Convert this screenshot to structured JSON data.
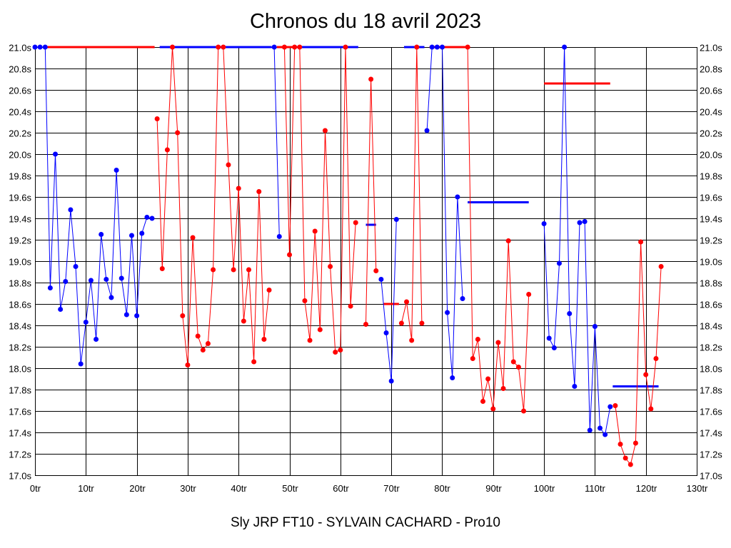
{
  "title": "Chronos du 18 avril 2023",
  "footer": "Sly JRP FT10 - SYLVAIN CACHARD - Pro10",
  "colors": {
    "blue": "#0000ff",
    "red": "#ff0000",
    "grid": "#000000",
    "background": "#ffffff"
  },
  "chart_data": {
    "type": "line",
    "title": "Chronos du 18 avril 2023",
    "xlabel": "",
    "ylabel": "",
    "xlim": [
      0,
      130
    ],
    "ylim": [
      17.0,
      21.0
    ],
    "grid": true,
    "x_ticks": [
      "0tr",
      "10tr",
      "20tr",
      "30tr",
      "40tr",
      "50tr",
      "60tr",
      "70tr",
      "80tr",
      "90tr",
      "100tr",
      "110tr",
      "120tr",
      "130tr"
    ],
    "y_ticks": [
      "17.0s",
      "17.2s",
      "17.4s",
      "17.6s",
      "17.8s",
      "18.0s",
      "18.2s",
      "18.4s",
      "18.6s",
      "18.8s",
      "19.0s",
      "19.2s",
      "19.4s",
      "19.6s",
      "19.8s",
      "20.0s",
      "20.2s",
      "20.4s",
      "20.6s",
      "20.8s",
      "21.0s"
    ],
    "series": [
      {
        "color": "blue",
        "x": [
          0,
          1,
          2,
          3,
          4,
          5,
          6,
          7,
          8,
          9,
          10,
          11,
          12,
          13,
          14,
          15,
          16,
          17,
          18,
          19,
          20,
          21,
          22,
          23
        ],
        "values": [
          21.0,
          21.0,
          21.0,
          18.75,
          20.0,
          18.55,
          18.81,
          19.48,
          18.95,
          18.04,
          18.43,
          18.82,
          18.27,
          19.25,
          18.83,
          18.66,
          19.85,
          18.84,
          18.5,
          19.24,
          18.49,
          19.26,
          19.41,
          19.4
        ]
      },
      {
        "color": "red",
        "x": [
          24,
          25,
          26,
          27,
          28,
          29,
          30,
          31,
          32,
          33,
          34,
          35,
          36,
          37,
          38,
          39,
          40,
          41,
          42,
          43,
          44,
          45,
          46
        ],
        "values": [
          20.33,
          18.93,
          20.04,
          21.0,
          20.2,
          18.49,
          18.03,
          19.22,
          18.3,
          18.17,
          18.23,
          18.92,
          21.0,
          21.0,
          19.9,
          18.92,
          19.68,
          18.44,
          18.92,
          18.06,
          19.65,
          18.27,
          18.73
        ]
      },
      {
        "color": "blue",
        "x": [
          47,
          48
        ],
        "values": [
          21.0,
          19.23
        ]
      },
      {
        "color": "red",
        "x": [
          49,
          50,
          51,
          52,
          53,
          54,
          55,
          56,
          57,
          58,
          59,
          60,
          61,
          62,
          63
        ],
        "values": [
          21.0,
          19.06,
          21.0,
          21.0,
          18.63,
          18.26,
          19.28,
          18.36,
          20.22,
          18.95,
          18.15,
          18.17,
          21.0,
          18.58,
          19.36
        ]
      },
      {
        "color": "red",
        "x": [
          65,
          66,
          67
        ],
        "values": [
          18.41,
          20.7,
          18.91
        ]
      },
      {
        "color": "blue",
        "x": [
          68,
          69,
          70,
          71
        ],
        "values": [
          18.83,
          18.33,
          17.88,
          19.39
        ]
      },
      {
        "color": "red",
        "x": [
          72,
          73,
          74,
          75,
          76
        ],
        "values": [
          18.42,
          18.62,
          18.26,
          21.0,
          18.42
        ]
      },
      {
        "color": "blue",
        "x": [
          77,
          78,
          79,
          80,
          81,
          82,
          83,
          84
        ],
        "values": [
          20.22,
          21.0,
          21.0,
          21.0,
          18.52,
          17.91,
          19.6,
          18.65
        ]
      },
      {
        "color": "red",
        "x": [
          85,
          86,
          87,
          88,
          89,
          90,
          91,
          92,
          93,
          94,
          95,
          96,
          97
        ],
        "values": [
          21.0,
          18.09,
          18.27,
          17.69,
          17.9,
          17.62,
          18.24,
          17.81,
          19.19,
          18.06,
          18.01,
          17.6,
          18.69
        ]
      },
      {
        "color": "blue",
        "x": [
          100,
          101,
          102,
          103,
          104,
          105,
          106,
          107,
          108,
          109,
          110,
          111,
          112,
          113
        ],
        "values": [
          19.35,
          18.28,
          18.19,
          18.98,
          21.0,
          18.51,
          17.83,
          19.36,
          19.37,
          17.42,
          18.39,
          17.44,
          17.38,
          17.64
        ]
      },
      {
        "color": "red",
        "x": [
          114,
          115,
          116,
          117,
          118,
          119,
          120,
          121,
          122,
          123
        ],
        "values": [
          17.65,
          17.29,
          17.16,
          17.1,
          17.3,
          19.18,
          17.94,
          17.62,
          18.09,
          18.95
        ]
      }
    ],
    "segments": [
      {
        "color": "red",
        "x": [
          2,
          23.5
        ],
        "value": 21.0
      },
      {
        "color": "blue",
        "x": [
          24.5,
          46.5
        ],
        "value": 21.0
      },
      {
        "color": "red",
        "x": [
          47.5,
          51.5
        ],
        "value": 21.0
      },
      {
        "color": "blue",
        "x": [
          51.5,
          63.5
        ],
        "value": 21.0
      },
      {
        "color": "blue",
        "x": [
          72.5,
          76.5
        ],
        "value": 21.0
      },
      {
        "color": "red",
        "x": [
          77.5,
          85
        ],
        "value": 21.0
      },
      {
        "color": "blue",
        "x": [
          65,
          67
        ],
        "value": 19.34
      },
      {
        "color": "red",
        "x": [
          68.5,
          71.5
        ],
        "value": 18.6
      },
      {
        "color": "blue",
        "x": [
          85,
          97
        ],
        "value": 19.55
      },
      {
        "color": "red",
        "x": [
          100,
          113
        ],
        "value": 20.66
      },
      {
        "color": "blue",
        "x": [
          113.5,
          122.5
        ],
        "value": 17.83
      }
    ]
  }
}
